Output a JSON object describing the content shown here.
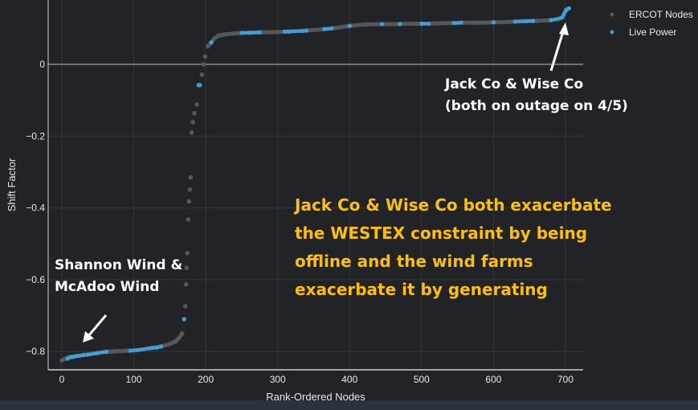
{
  "chart_data": {
    "type": "scatter",
    "xlabel": "Rank-Ordered Nodes",
    "ylabel": "Shift Factor",
    "xlim": [
      -20,
      725
    ],
    "ylim": [
      -0.85,
      0.18
    ],
    "xticks": [
      "0",
      "100",
      "200",
      "300",
      "400",
      "500",
      "600",
      "700"
    ],
    "xtick_values": [
      0,
      100,
      200,
      300,
      400,
      500,
      600,
      700
    ],
    "yticks": [
      "0",
      "−0.2",
      "−0.4",
      "−0.6",
      "−0.8"
    ],
    "ytick_values": [
      0,
      -0.2,
      -0.4,
      -0.6,
      -0.8
    ],
    "grid": true,
    "legend_placement": "top-right",
    "series": [
      {
        "name": "ERCOT Nodes",
        "color": "#55575c",
        "points": [
          [
            0,
            -0.825
          ],
          [
            5,
            -0.82
          ],
          [
            10,
            -0.816
          ],
          [
            20,
            -0.813
          ],
          [
            30,
            -0.81
          ],
          [
            40,
            -0.807
          ],
          [
            50,
            -0.804
          ],
          [
            60,
            -0.801
          ],
          [
            70,
            -0.8
          ],
          [
            80,
            -0.799
          ],
          [
            90,
            -0.798
          ],
          [
            100,
            -0.797
          ],
          [
            110,
            -0.795
          ],
          [
            120,
            -0.792
          ],
          [
            130,
            -0.789
          ],
          [
            140,
            -0.785
          ],
          [
            150,
            -0.779
          ],
          [
            158,
            -0.772
          ],
          [
            163,
            -0.762
          ],
          [
            167,
            -0.75
          ],
          [
            170,
            -0.71
          ],
          [
            171.5,
            -0.674
          ],
          [
            172.7,
            -0.613
          ],
          [
            173.4,
            -0.567
          ],
          [
            174.5,
            -0.526
          ],
          [
            175.6,
            -0.432
          ],
          [
            176.7,
            -0.382
          ],
          [
            177.9,
            -0.349
          ],
          [
            179,
            -0.315
          ],
          [
            180.5,
            -0.19
          ],
          [
            182,
            -0.161
          ],
          [
            184.2,
            -0.136
          ],
          [
            187.6,
            -0.112
          ],
          [
            191.3,
            -0.058
          ],
          [
            194.6,
            -0.029
          ],
          [
            196.8,
            0.0
          ],
          [
            199,
            0.022
          ],
          [
            203,
            0.05
          ],
          [
            207.7,
            0.061
          ],
          [
            212,
            0.072
          ],
          [
            218,
            0.08
          ],
          [
            226,
            0.083
          ],
          [
            240,
            0.086
          ],
          [
            260,
            0.088
          ],
          [
            280,
            0.089
          ],
          [
            300,
            0.09
          ],
          [
            320,
            0.092
          ],
          [
            340,
            0.094
          ],
          [
            360,
            0.097
          ],
          [
            380,
            0.101
          ],
          [
            400,
            0.107
          ],
          [
            420,
            0.111
          ],
          [
            440,
            0.112
          ],
          [
            460,
            0.112
          ],
          [
            480,
            0.113
          ],
          [
            500,
            0.113
          ],
          [
            520,
            0.114
          ],
          [
            540,
            0.115
          ],
          [
            560,
            0.116
          ],
          [
            580,
            0.116
          ],
          [
            600,
            0.117
          ],
          [
            620,
            0.118
          ],
          [
            640,
            0.12
          ],
          [
            660,
            0.121
          ],
          [
            680,
            0.123
          ],
          [
            690,
            0.125
          ],
          [
            696,
            0.132
          ],
          [
            700,
            0.148
          ],
          [
            704,
            0.155
          ]
        ]
      },
      {
        "name": "Live Power",
        "color": "#3ea0d8",
        "points": [
          [
            8,
            -0.82
          ],
          [
            12,
            -0.816
          ],
          [
            16,
            -0.815
          ],
          [
            20,
            -0.813
          ],
          [
            24,
            -0.812
          ],
          [
            30,
            -0.81
          ],
          [
            36,
            -0.809
          ],
          [
            48,
            -0.805
          ],
          [
            62,
            -0.801
          ],
          [
            95,
            -0.798
          ],
          [
            105,
            -0.796
          ],
          [
            125,
            -0.79
          ],
          [
            132,
            -0.789
          ],
          [
            138,
            -0.786
          ],
          [
            170,
            -0.71
          ],
          [
            190,
            -0.058
          ],
          [
            192,
            -0.058
          ],
          [
            207.7,
            0.061
          ],
          [
            250,
            0.088
          ],
          [
            262,
            0.088
          ],
          [
            275,
            0.089
          ],
          [
            310,
            0.091
          ],
          [
            315,
            0.091
          ],
          [
            335,
            0.093
          ],
          [
            340,
            0.094
          ],
          [
            365,
            0.098
          ],
          [
            375,
            0.1
          ],
          [
            400,
            0.107
          ],
          [
            445,
            0.112
          ],
          [
            470,
            0.112
          ],
          [
            500,
            0.113
          ],
          [
            510,
            0.113
          ],
          [
            545,
            0.115
          ],
          [
            555,
            0.116
          ],
          [
            600,
            0.117
          ],
          [
            630,
            0.119
          ],
          [
            645,
            0.12
          ],
          [
            655,
            0.121
          ],
          [
            680,
            0.123
          ],
          [
            695,
            0.13
          ],
          [
            698,
            0.14
          ],
          [
            701,
            0.152
          ],
          [
            705,
            0.156
          ]
        ]
      }
    ],
    "annotations": [
      {
        "text_lines": [
          "Jack Co & Wise Co",
          "(both on outage on 4/5)"
        ],
        "color": "#ffffff"
      },
      {
        "text_lines": [
          "Shannon Wind &",
          "McAdoo Wind"
        ],
        "color": "#ffffff"
      },
      {
        "text_lines": [
          "Jack Co & Wise Co both exacerbate",
          "the WESTEX constraint by being",
          "offline and the wind farms",
          "exacerbate it by generating"
        ],
        "color": "#ffc000"
      }
    ]
  }
}
